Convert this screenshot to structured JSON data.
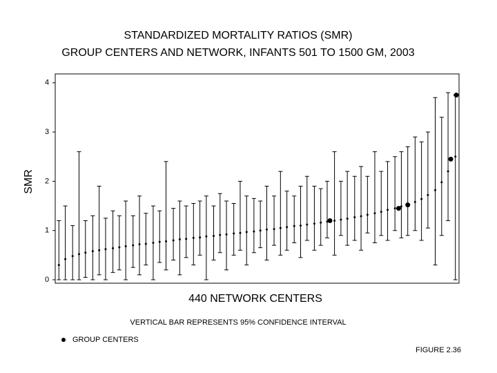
{
  "chart_data": {
    "type": "errorbar",
    "title": "STANDARDIZED MORTALITY RATIOS (SMR)",
    "subtitle": "GROUP CENTERS AND NETWORK, INFANTS 501 TO 1500 GM, 2003",
    "x_label": "440 NETWORK CENTERS",
    "y_label": "SMR",
    "note": "VERTICAL BAR REPRESENTS 95% CONFIDENCE INTERVAL",
    "figure_label": "FIGURE 2.36",
    "xlim": [
      0,
      441
    ],
    "ylim": [
      -0.07,
      4.18
    ],
    "yticks": [
      0,
      1,
      2,
      3,
      4
    ],
    "color": "#000000",
    "intervals": {
      "x": [
        4,
        11,
        19,
        26,
        33,
        41,
        48,
        55,
        63,
        70,
        77,
        85,
        92,
        99,
        107,
        114,
        121,
        129,
        136,
        143,
        151,
        158,
        165,
        173,
        180,
        187,
        195,
        202,
        209,
        217,
        224,
        231,
        239,
        246,
        253,
        261,
        268,
        275,
        283,
        290,
        297,
        305,
        312,
        319,
        327,
        334,
        341,
        349,
        356,
        363,
        371,
        378,
        385,
        393,
        400,
        407,
        415,
        422,
        429,
        437
      ],
      "values": [
        0.3,
        0.42,
        0.48,
        0.52,
        0.55,
        0.58,
        0.6,
        0.62,
        0.64,
        0.66,
        0.68,
        0.7,
        0.72,
        0.73,
        0.75,
        0.77,
        0.78,
        0.8,
        0.82,
        0.83,
        0.85,
        0.86,
        0.88,
        0.89,
        0.91,
        0.92,
        0.94,
        0.95,
        0.97,
        0.98,
        1.0,
        1.02,
        1.03,
        1.05,
        1.07,
        1.09,
        1.1,
        1.12,
        1.14,
        1.16,
        1.18,
        1.2,
        1.22,
        1.24,
        1.27,
        1.29,
        1.32,
        1.35,
        1.38,
        1.42,
        1.45,
        1.49,
        1.53,
        1.58,
        1.64,
        1.72,
        1.82,
        1.98,
        2.2,
        2.5
      ],
      "lower": [
        0,
        0,
        0,
        0,
        0.05,
        0,
        0.1,
        0,
        0.15,
        0.2,
        0,
        0.25,
        0.1,
        0.3,
        0,
        0.35,
        0.2,
        0.4,
        0.1,
        0.45,
        0.3,
        0.5,
        0,
        0.4,
        0.55,
        0.2,
        0.5,
        0.6,
        0.3,
        0.55,
        0.65,
        0.4,
        0.7,
        0.5,
        0.6,
        0.75,
        0.45,
        0.8,
        0.6,
        0.7,
        0.85,
        0.5,
        0.9,
        0.7,
        0.8,
        0.6,
        0.95,
        0.75,
        0.9,
        0.8,
        1.0,
        0.85,
        0.9,
        1.0,
        0.8,
        1.05,
        0.3,
        0.9,
        1.2,
        0
      ],
      "upper": [
        1.2,
        1.5,
        1.1,
        2.6,
        1.2,
        1.3,
        1.9,
        1.25,
        1.4,
        1.3,
        1.6,
        1.3,
        1.7,
        1.35,
        1.5,
        1.4,
        2.4,
        1.45,
        1.6,
        1.5,
        1.55,
        1.6,
        1.7,
        1.5,
        1.75,
        1.6,
        1.55,
        2.0,
        1.7,
        1.65,
        1.6,
        1.9,
        1.7,
        2.2,
        1.8,
        1.7,
        1.9,
        2.1,
        1.9,
        1.85,
        2.0,
        2.6,
        2.0,
        2.2,
        2.1,
        2.3,
        2.1,
        2.6,
        2.2,
        2.4,
        2.5,
        2.6,
        2.7,
        2.9,
        2.8,
        3.0,
        3.7,
        3.3,
        3.8,
        3.75
      ]
    },
    "series": [
      {
        "name": "GROUP CENTERS",
        "color": "#000000",
        "x": [
          300,
          375,
          385,
          432,
          438
        ],
        "values": [
          1.2,
          1.45,
          1.52,
          2.45,
          3.75
        ]
      }
    ]
  }
}
